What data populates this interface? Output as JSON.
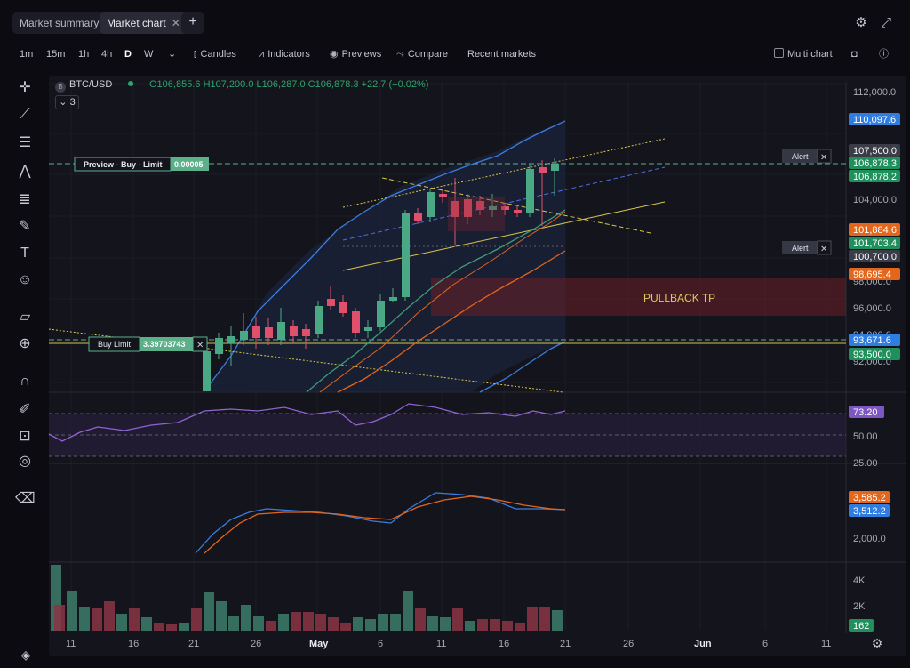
{
  "tabs": [
    {
      "label": "Market summary",
      "active": false
    },
    {
      "label": "Market chart",
      "active": true
    }
  ],
  "tab_close_glyph": "✕",
  "tab_add_glyph": "+",
  "top_icons": [
    "gear-icon",
    "expand-icon"
  ],
  "timeframes": [
    "1m",
    "15m",
    "1h",
    "4h",
    "D",
    "W"
  ],
  "selected_timeframe": "D",
  "toolbar": {
    "candles": "Candles",
    "indicators": "Indicators",
    "previews": "Previews",
    "compare": "Compare",
    "recent": "Recent markets",
    "multi_chart": "Multi chart"
  },
  "left_tools": [
    "crosshair-icon",
    "trendline-icon",
    "horizontal-lines-icon",
    "pattern-icon",
    "fib-icon",
    "brush-icon",
    "text-icon",
    "emoji-icon",
    "ruler-icon",
    "zoom-in-icon",
    "magnet-icon",
    "lock-pen-icon",
    "unlock-icon",
    "eye-icon",
    "trash-icon"
  ],
  "symbol": {
    "name": "BTC/USD",
    "open": "O106,855.6",
    "high": "H107,200.0",
    "low": "L106,287.0",
    "close": "C106,878.3",
    "change": "+22.7 (+0.02%)",
    "indicator_count": "3"
  },
  "price_axis": {
    "ticks": [
      "112,000.0",
      "104,000.0",
      "98,000.0",
      "96,000.0",
      "94,000.0",
      "92,000.0"
    ],
    "badges": [
      {
        "label": "110,097.6",
        "color": "#2f7de1"
      },
      {
        "label": "107,500.0",
        "color": "#3a3c48"
      },
      {
        "label": "106,878.3",
        "color": "#1f8f5c"
      },
      {
        "label": "106,878.2",
        "color": "#1f8f5c"
      },
      {
        "label": "101,884.6",
        "color": "#e2661b"
      },
      {
        "label": "101,703.4",
        "color": "#1f8f5c"
      },
      {
        "label": "100,700.0",
        "color": "#3a3c48"
      },
      {
        "label": "98,695.4",
        "color": "#e2661b"
      },
      {
        "label": "93,671.6",
        "color": "#2f7de1"
      },
      {
        "label": "93,500.0",
        "color": "#1f8f5c"
      }
    ]
  },
  "orders": {
    "preview_label": "Preview - Buy - Limit",
    "preview_qty": "0.00005",
    "buy_label": "Buy Limit",
    "buy_qty": "3.39703743",
    "alert1": "Alert",
    "alert2": "Alert",
    "close_glyph": "✕"
  },
  "zone_label": "PULLBACK TP",
  "rsi_axis": {
    "ticks": [
      "50.00",
      "25.00"
    ],
    "badge": "73.20",
    "badge_color": "#7e57c2"
  },
  "macd_axis": {
    "ticks": [
      "2,000.0"
    ],
    "badges": [
      {
        "label": "3,585.2",
        "color": "#e2661b"
      },
      {
        "label": "3,512.2",
        "color": "#2f7de1"
      }
    ]
  },
  "volume_axis": {
    "ticks": [
      "4K",
      "2K"
    ],
    "badge": "162",
    "badge_color": "#1f8f5c"
  },
  "time_axis": [
    "11",
    "16",
    "21",
    "26",
    "May",
    "6",
    "11",
    "16",
    "21",
    "26",
    "Jun",
    "6",
    "11"
  ],
  "colors": {
    "up": "#4aa884",
    "down": "#e0506b",
    "accent_yellow": "#d9c54a"
  }
}
